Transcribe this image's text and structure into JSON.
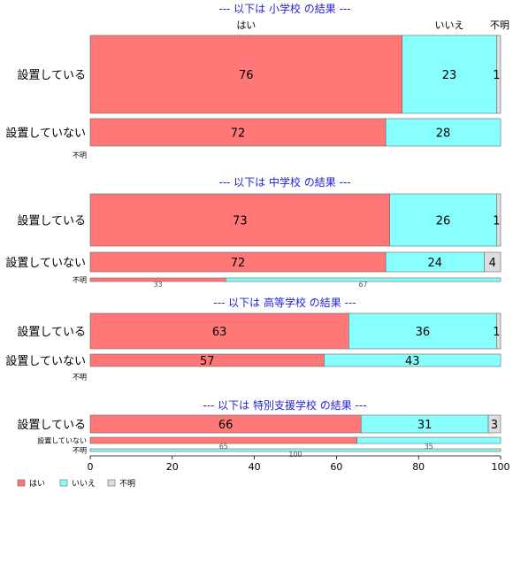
{
  "chart_data": {
    "type": "bar",
    "orientation": "horizontal",
    "stacked": true,
    "xlim": [
      0,
      100
    ],
    "xticks": [
      0,
      20,
      40,
      60,
      80,
      100
    ],
    "grid": false,
    "legend_position": "bottom-left",
    "column_headers": [
      "はい",
      "いいえ",
      "不明"
    ],
    "series": [
      {
        "name": "はい",
        "color": "#ff7777"
      },
      {
        "name": "いいえ",
        "color": "#88ffff"
      },
      {
        "name": "不明",
        "color": "#dddddd"
      }
    ],
    "panels": [
      {
        "title": "--- 以下は 小学校 の結果 ---",
        "rows": [
          {
            "label": "設置している",
            "values": [
              76,
              23,
              1
            ]
          },
          {
            "label": "設置していない",
            "values": [
              72,
              28,
              0
            ]
          },
          {
            "label": "不明",
            "values": [
              0,
              0,
              0
            ]
          }
        ]
      },
      {
        "title": "--- 以下は 中学校 の結果 ---",
        "rows": [
          {
            "label": "設置している",
            "values": [
              73,
              26,
              1
            ]
          },
          {
            "label": "設置していない",
            "values": [
              72,
              24,
              4
            ]
          },
          {
            "label": "不明",
            "values": [
              33,
              67,
              0
            ]
          }
        ]
      },
      {
        "title": "--- 以下は 高等学校 の結果 ---",
        "rows": [
          {
            "label": "設置している",
            "values": [
              63,
              36,
              1
            ]
          },
          {
            "label": "設置していない",
            "values": [
              57,
              43,
              0
            ]
          },
          {
            "label": "不明",
            "values": [
              0,
              0,
              0
            ]
          }
        ]
      },
      {
        "title": "--- 以下は 特別支援学校 の結果 ---",
        "rows": [
          {
            "label": "設置している",
            "values": [
              66,
              31,
              3
            ]
          },
          {
            "label": "設置していない",
            "values": [
              65,
              35,
              0
            ]
          },
          {
            "label": "不明",
            "values": [
              0,
              100,
              0
            ]
          }
        ]
      }
    ]
  }
}
